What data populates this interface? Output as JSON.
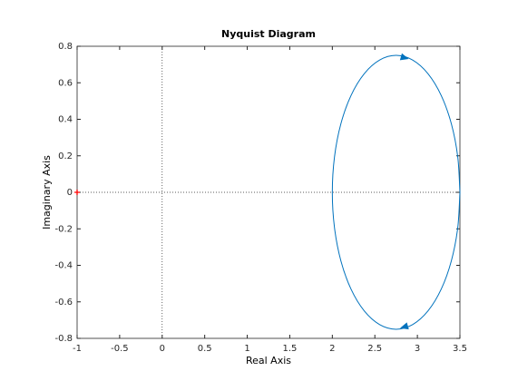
{
  "chart_data": {
    "type": "nyquist",
    "title": "Nyquist Diagram",
    "x_label": "Real Axis",
    "y_label": "Imaginary Axis",
    "x": [
      3.5,
      3.4744,
      3.3995,
      3.2803,
      3.125,
      2.9441,
      2.75,
      2.5559,
      2.375,
      2.2197,
      2.1005,
      2.0256,
      2,
      2.0256,
      2.1005,
      2.2197,
      2.375,
      2.5559,
      2.75,
      2.9441,
      3.125,
      3.2803,
      3.3995,
      3.4744,
      3.5
    ],
    "y": [
      0,
      -0.1941,
      -0.375,
      -0.5303,
      -0.6495,
      -0.7244,
      -0.75,
      -0.7244,
      -0.6495,
      -0.5303,
      -0.375,
      -0.1941,
      0,
      0.1941,
      0.375,
      0.5303,
      0.6495,
      0.7244,
      0.75,
      0.7244,
      0.6495,
      0.5303,
      0.375,
      0.1941,
      0
    ],
    "color": "#0072bd",
    "critical_point": {
      "x": -1,
      "y": 0,
      "color": "#ff0000"
    },
    "xlim": [
      -1,
      3.5
    ],
    "xticks": [
      -1,
      -0.5,
      0,
      0.5,
      1,
      1.5,
      2,
      2.5,
      3,
      3.5
    ],
    "ylim": [
      -0.8,
      0.8
    ],
    "yticks": [
      -0.8,
      -0.6,
      -0.4,
      -0.2,
      0,
      0.2,
      0.4,
      0.6,
      0.8
    ],
    "grid": false
  }
}
